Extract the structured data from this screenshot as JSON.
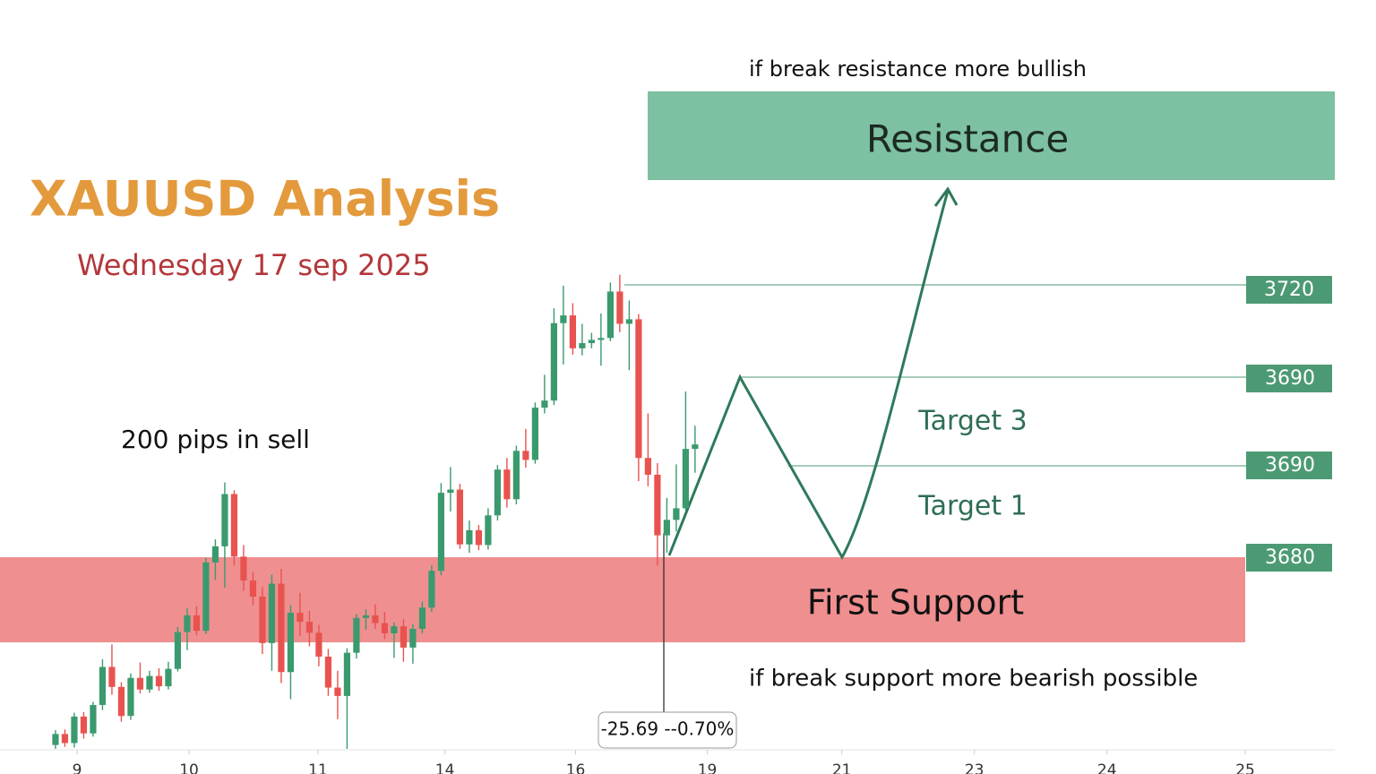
{
  "chart_data": {
    "type": "candlestick",
    "title": "XAUUSD Analysis",
    "subtitle": "Wednesday 17 sep 2025",
    "up_color": "#3a9a6e",
    "down_color": "#e8534f",
    "xlim": [
      -5.9,
      140.4
    ],
    "ylim": [
      3640,
      3760
    ],
    "xticks": [
      {
        "value": 2.3,
        "label": "9"
      },
      {
        "value": 14.2,
        "label": "10"
      },
      {
        "value": 27.9,
        "label": "11"
      },
      {
        "value": 41.4,
        "label": "14"
      },
      {
        "value": 55.3,
        "label": "16"
      },
      {
        "value": 69.3,
        "label": "19"
      },
      {
        "value": 83.6,
        "label": "21"
      },
      {
        "value": 97.7,
        "label": "23"
      },
      {
        "value": 111.8,
        "label": "24"
      },
      {
        "value": 126.5,
        "label": "25"
      }
    ],
    "x": [
      0,
      1,
      2,
      3,
      4,
      5,
      6,
      7,
      8,
      9,
      10,
      11,
      12,
      13,
      14,
      15,
      16,
      17,
      18,
      19,
      20,
      21,
      22,
      23,
      24,
      25,
      26,
      27,
      28,
      29,
      30,
      31,
      32,
      33,
      34,
      35,
      36,
      37,
      38,
      39,
      40,
      41,
      42,
      43,
      44,
      45,
      46,
      47,
      48,
      49,
      50,
      51,
      52,
      53,
      54,
      55,
      56,
      57,
      58,
      59,
      60,
      61,
      62,
      63,
      64,
      65,
      66,
      67,
      68
    ],
    "open": [
      3644.5,
      3646.2,
      3644.8,
      3648.9,
      3646.3,
      3650.7,
      3656.6,
      3653.5,
      3649.0,
      3654.9,
      3653.1,
      3655.2,
      3653.6,
      3656.3,
      3662.0,
      3664.6,
      3662.2,
      3672.8,
      3675.3,
      3683.4,
      3673.7,
      3670.0,
      3667.5,
      3660.3,
      3669.5,
      3655.8,
      3665.0,
      3663.6,
      3661.9,
      3658.2,
      3653.4,
      3652.1,
      3658.8,
      3664.2,
      3664.6,
      3663.4,
      3661.8,
      3662.9,
      3659.6,
      3662.5,
      3665.8,
      3671.5,
      3683.6,
      3684.1,
      3675.6,
      3677.8,
      3675.5,
      3680.1,
      3687.2,
      3682.6,
      3690.1,
      3688.7,
      3696.8,
      3697.9,
      3709.9,
      3711.1,
      3706.0,
      3706.8,
      3707.3,
      3707.6,
      3714.8,
      3709.8,
      3710.5,
      3689.0,
      3686.4,
      3677.0,
      3679.4,
      3681.2,
      3690.4
    ],
    "high": [
      3646.8,
      3646.9,
      3649.5,
      3649.6,
      3651.2,
      3657.8,
      3660.1,
      3654.2,
      3655.6,
      3657.3,
      3656.0,
      3656.4,
      3657.4,
      3662.8,
      3665.7,
      3666.0,
      3673.5,
      3676.4,
      3685.2,
      3684.0,
      3675.5,
      3671.3,
      3669.0,
      3670.9,
      3671.8,
      3666.2,
      3668.1,
      3665.3,
      3663.1,
      3659.4,
      3656.0,
      3659.5,
      3664.8,
      3665.5,
      3666.3,
      3665.1,
      3663.5,
      3664.0,
      3663.2,
      3666.7,
      3672.4,
      3685.1,
      3687.6,
      3685.0,
      3679.3,
      3678.6,
      3681.2,
      3687.9,
      3689.0,
      3690.9,
      3693.5,
      3697.6,
      3701.9,
      3712.2,
      3715.7,
      3713.0,
      3709.8,
      3708.4,
      3711.4,
      3716.2,
      3717.4,
      3713.4,
      3711.3,
      3695.9,
      3688.2,
      3682.8,
      3688.0,
      3699.3,
      3694.0
    ],
    "low": [
      3643.9,
      3644.2,
      3644.1,
      3645.5,
      3645.8,
      3649.9,
      3652.3,
      3648.1,
      3648.4,
      3652.5,
      3652.6,
      3652.9,
      3653.1,
      3655.9,
      3659.2,
      3661.5,
      3661.7,
      3670.1,
      3668.9,
      3672.3,
      3668.4,
      3666.2,
      3658.6,
      3656.0,
      3654.1,
      3651.6,
      3661.4,
      3659.8,
      3656.7,
      3652.1,
      3648.5,
      3643.9,
      3657.9,
      3662.4,
      3662.5,
      3660.9,
      3658.0,
      3657.4,
      3657.1,
      3661.8,
      3665.1,
      3670.8,
      3680.7,
      3674.9,
      3674.3,
      3674.7,
      3674.8,
      3679.3,
      3681.3,
      3681.8,
      3687.5,
      3688.1,
      3695.9,
      3697.2,
      3703.5,
      3705.0,
      3704.9,
      3706.0,
      3703.3,
      3707.1,
      3708.5,
      3702.6,
      3685.4,
      3684.6,
      3672.3,
      3674.3,
      3677.6,
      3680.8,
      3686.7
    ],
    "close": [
      3646.2,
      3644.8,
      3648.9,
      3646.3,
      3650.7,
      3656.6,
      3653.5,
      3649.0,
      3654.9,
      3653.1,
      3655.2,
      3653.6,
      3656.3,
      3662.0,
      3664.6,
      3662.2,
      3672.8,
      3675.3,
      3683.4,
      3673.7,
      3670.0,
      3667.5,
      3660.3,
      3669.5,
      3655.8,
      3665.0,
      3663.6,
      3661.9,
      3658.2,
      3653.4,
      3652.1,
      3658.8,
      3664.2,
      3664.6,
      3663.4,
      3661.8,
      3662.9,
      3659.6,
      3662.5,
      3665.8,
      3671.5,
      3683.6,
      3684.1,
      3675.6,
      3677.8,
      3675.5,
      3680.1,
      3687.2,
      3682.6,
      3690.1,
      3688.7,
      3696.8,
      3697.9,
      3709.9,
      3711.1,
      3706.0,
      3706.8,
      3707.3,
      3707.6,
      3714.8,
      3709.8,
      3710.5,
      3689.0,
      3686.4,
      3677.0,
      3679.4,
      3681.2,
      3690.4,
      3691.1
    ],
    "annotations": {
      "resistance_note": "if break resistance more bullish",
      "resistance": "Resistance",
      "support": "First Support",
      "support_note": "if break support more bearish possible",
      "sell_note": "200 pips in sell",
      "target_3": "Target 3",
      "target_1": "Target 1",
      "levels": [
        "3720",
        "3690",
        "3690",
        "3680"
      ],
      "measure": "-25.69 --0.70%"
    }
  }
}
